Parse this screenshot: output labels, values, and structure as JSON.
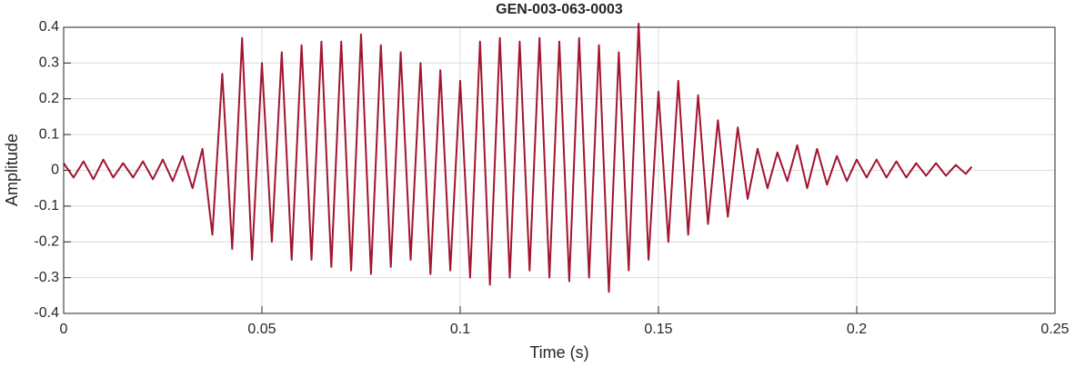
{
  "chart_data": {
    "type": "line",
    "title": "GEN-003-063-0003",
    "xlabel": "Time (s)",
    "ylabel": "Amplitude",
    "x": [
      0,
      0.0025,
      0.005,
      0.0075,
      0.01,
      0.0125,
      0.015,
      0.0175,
      0.02,
      0.0225,
      0.025,
      0.0275,
      0.03,
      0.0325,
      0.035,
      0.0375,
      0.04,
      0.0425,
      0.045,
      0.0475,
      0.05,
      0.0525,
      0.055,
      0.0575,
      0.06,
      0.0625,
      0.065,
      0.0675,
      0.07,
      0.0725,
      0.075,
      0.0775,
      0.08,
      0.0825,
      0.085,
      0.0875,
      0.09,
      0.0925,
      0.095,
      0.0975,
      0.1,
      0.1025,
      0.105,
      0.1075,
      0.11,
      0.1125,
      0.115,
      0.1175,
      0.12,
      0.1225,
      0.125,
      0.1275,
      0.13,
      0.1325,
      0.135,
      0.1375,
      0.14,
      0.1425,
      0.145,
      0.1475,
      0.15,
      0.1525,
      0.155,
      0.1575,
      0.16,
      0.1625,
      0.165,
      0.1675,
      0.17,
      0.1725,
      0.175,
      0.1775,
      0.18,
      0.1825,
      0.185,
      0.1875,
      0.19,
      0.1925,
      0.195,
      0.1975,
      0.2,
      0.2025,
      0.205,
      0.2075,
      0.21,
      0.2125,
      0.215,
      0.2175,
      0.22,
      0.2225,
      0.225,
      0.2275,
      0.229
    ],
    "series": [
      {
        "color": "#a2142f",
        "values": [
          0.02,
          -0.02,
          0.025,
          -0.025,
          0.03,
          -0.02,
          0.02,
          -0.02,
          0.025,
          -0.025,
          0.03,
          -0.03,
          0.04,
          -0.05,
          0.06,
          -0.18,
          0.27,
          -0.22,
          0.37,
          -0.25,
          0.3,
          -0.2,
          0.33,
          -0.25,
          0.35,
          -0.25,
          0.36,
          -0.27,
          0.36,
          -0.28,
          0.38,
          -0.29,
          0.35,
          -0.27,
          0.33,
          -0.25,
          0.3,
          -0.29,
          0.28,
          -0.28,
          0.25,
          -0.3,
          0.36,
          -0.32,
          0.37,
          -0.3,
          0.36,
          -0.28,
          0.37,
          -0.3,
          0.36,
          -0.31,
          0.37,
          -0.3,
          0.35,
          -0.34,
          0.33,
          -0.28,
          0.41,
          -0.25,
          0.22,
          -0.2,
          0.25,
          -0.18,
          0.21,
          -0.15,
          0.14,
          -0.13,
          0.12,
          -0.08,
          0.06,
          -0.05,
          0.05,
          -0.03,
          0.07,
          -0.05,
          0.06,
          -0.04,
          0.04,
          -0.03,
          0.03,
          -0.02,
          0.03,
          -0.02,
          0.025,
          -0.02,
          0.02,
          -0.015,
          0.02,
          -0.015,
          0.015,
          -0.01,
          0.01
        ]
      }
    ],
    "xlim": [
      0,
      0.25
    ],
    "xticks": [
      0,
      0.05,
      0.1,
      0.15,
      0.2,
      0.25
    ],
    "ylim": [
      -0.4,
      0.4
    ],
    "yticks": [
      -0.4,
      -0.3,
      -0.2,
      -0.1,
      0,
      0.1,
      0.2,
      0.3,
      0.4
    ],
    "grid": true
  }
}
